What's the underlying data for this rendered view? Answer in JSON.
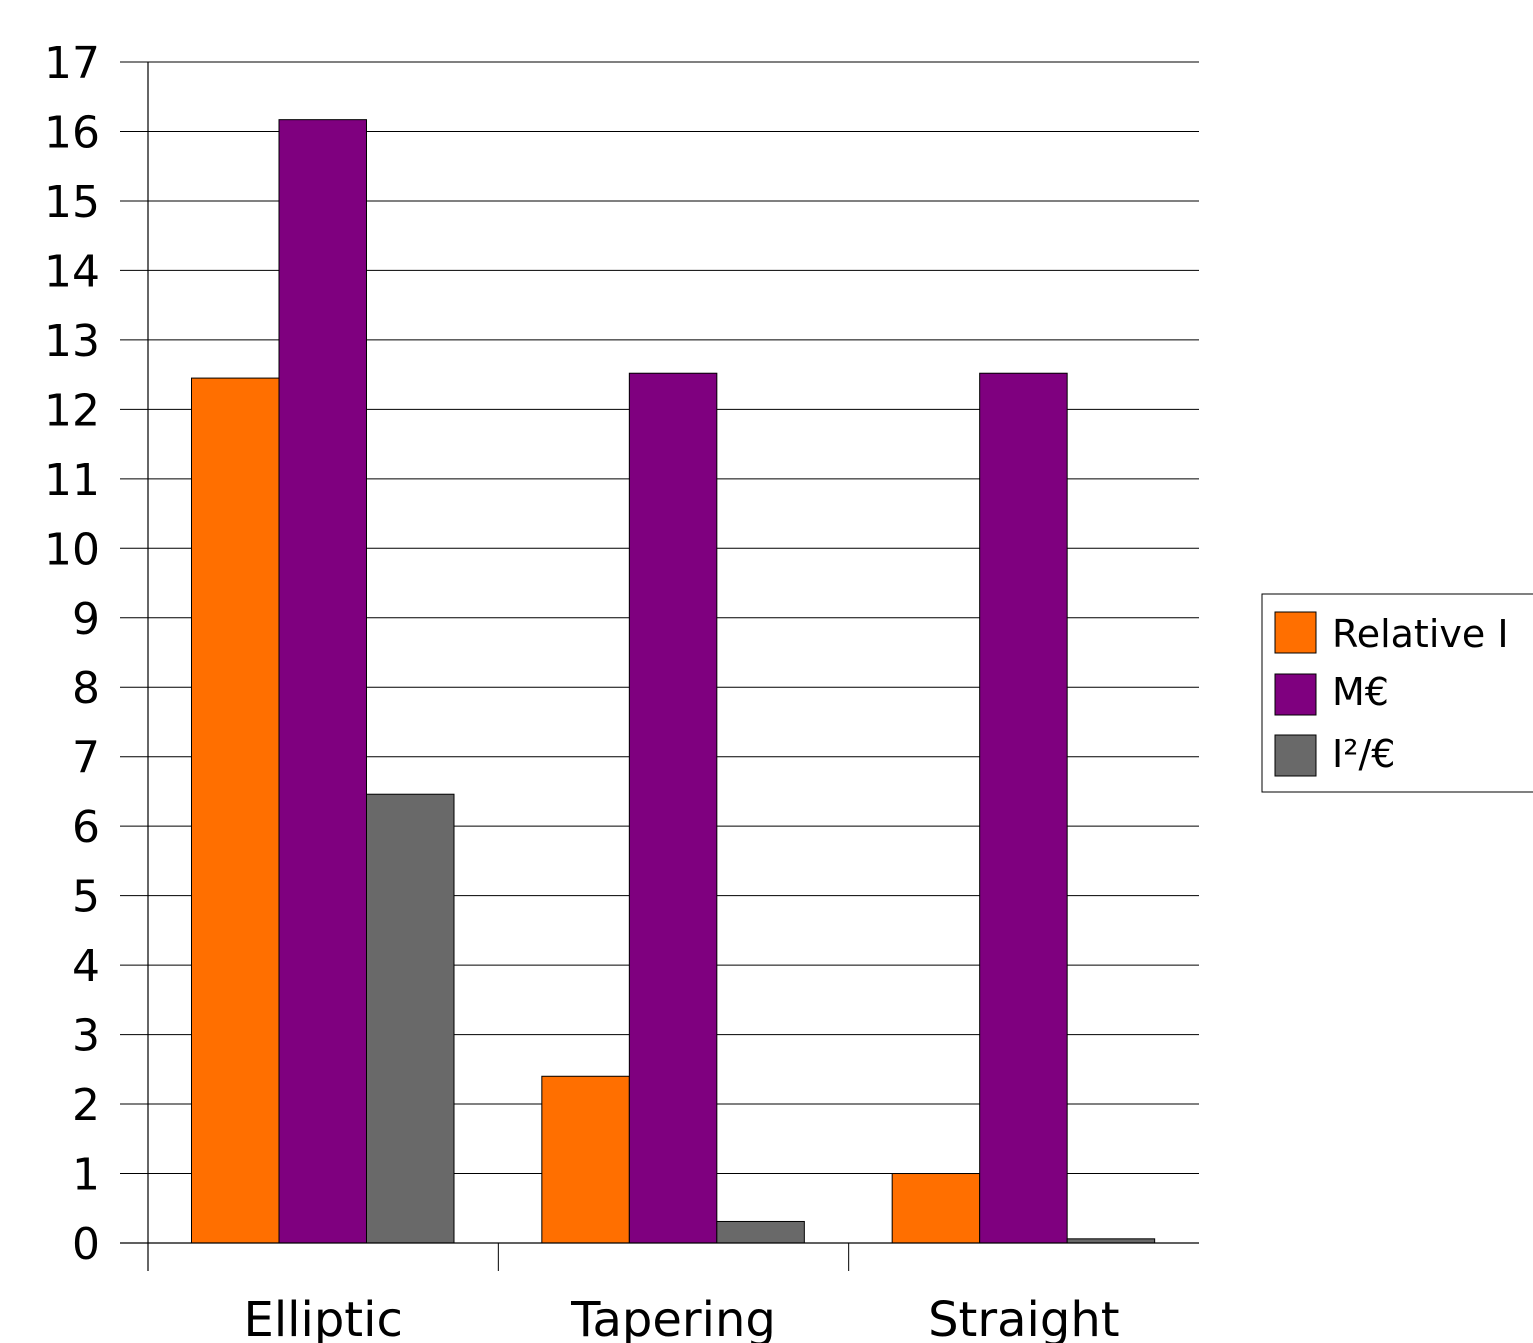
{
  "chart_data": {
    "type": "bar",
    "categories": [
      "Elliptic",
      "Tapering",
      "Straight"
    ],
    "series": [
      {
        "name": "Relative I",
        "color": "#ff6f00",
        "values": [
          12.45,
          2.4,
          1.0
        ]
      },
      {
        "name": "M€",
        "color": "#7f007f",
        "values": [
          16.17,
          12.52,
          12.52
        ]
      },
      {
        "name": "I²/€",
        "color": "#696969",
        "values": [
          6.46,
          0.31,
          0.06
        ]
      }
    ],
    "ylim": [
      0,
      17
    ],
    "yticks": [
      "0",
      "1",
      "2",
      "3",
      "4",
      "5",
      "6",
      "7",
      "8",
      "9",
      "10",
      "11",
      "12",
      "13",
      "14",
      "15",
      "16",
      "17"
    ],
    "grid": true,
    "legend_position": "right"
  }
}
